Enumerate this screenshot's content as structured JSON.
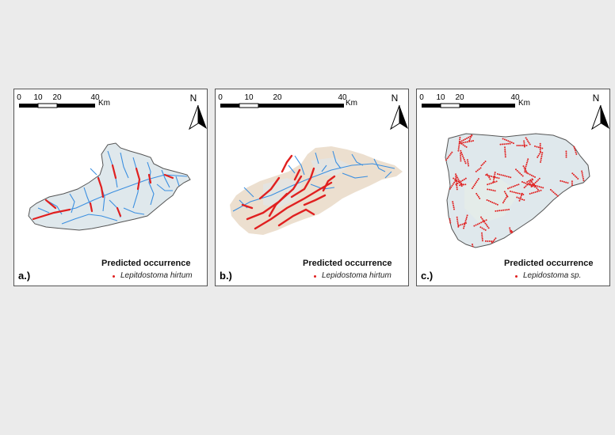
{
  "colors": {
    "background": "#ebebeb",
    "panel_border": "#555555",
    "river": "#3b8fe0",
    "occurrence": "#e02020",
    "basin_fill": "#dfe8ec",
    "basin_fill_relief": "#eadbca",
    "basin_outline": "#555555"
  },
  "panels": [
    {
      "label": "a.)",
      "scale": {
        "ticks": [
          "0",
          "10",
          "20",
          "40"
        ],
        "unit": "Km"
      },
      "north": "N",
      "legend": {
        "title": "Predicted occurrence",
        "species": "Lepitdostoma hirtum"
      }
    },
    {
      "label": "b.)",
      "scale": {
        "ticks": [
          "0",
          "10",
          "20",
          "40"
        ],
        "unit": "Km"
      },
      "north": "N",
      "legend": {
        "title": "Predicted occurrence",
        "species": "Lepidostoma hirtum"
      }
    },
    {
      "label": "c.)",
      "scale": {
        "ticks": [
          "0",
          "10",
          "20",
          "40"
        ],
        "unit": "Km"
      },
      "north": "N",
      "legend": {
        "title": "Predicted occurrence",
        "species": "Lepidostoma sp."
      }
    }
  ]
}
